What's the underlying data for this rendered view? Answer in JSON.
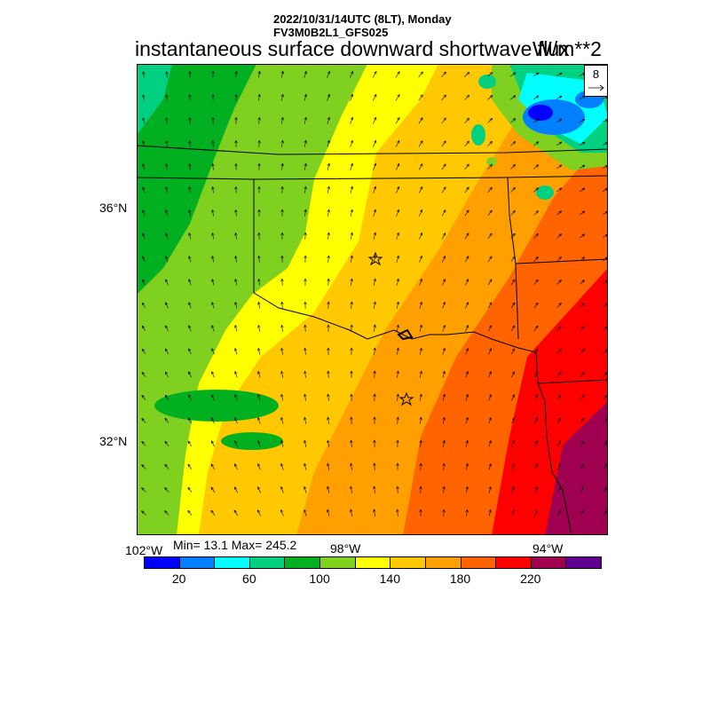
{
  "header": {
    "time_line": "2022/10/31/14UTC (8LT), Monday",
    "model_line": "FV3M0B2L1_GFS025",
    "title": "instantaneous surface downward shortwave flux",
    "units": "W/m**2"
  },
  "stats": "Min= 13.1 Max= 245.2",
  "reference_vector": {
    "label": "8"
  },
  "axes": {
    "lat_labels": [
      "36°N",
      "32°N"
    ],
    "lon_labels": [
      "102°W",
      "98°W",
      "94°W"
    ]
  },
  "colorbar": {
    "colors": [
      "#0000ff",
      "#0080ff",
      "#00ffff",
      "#00d080",
      "#00b020",
      "#80d020",
      "#ffff00",
      "#ffc800",
      "#ffa000",
      "#ff6400",
      "#ff0000",
      "#a00050",
      "#600090"
    ],
    "labels": [
      "20",
      "60",
      "100",
      "140",
      "180",
      "220"
    ]
  },
  "markers": [
    "city-star-oklahoma-city",
    "city-star-dallas"
  ]
}
